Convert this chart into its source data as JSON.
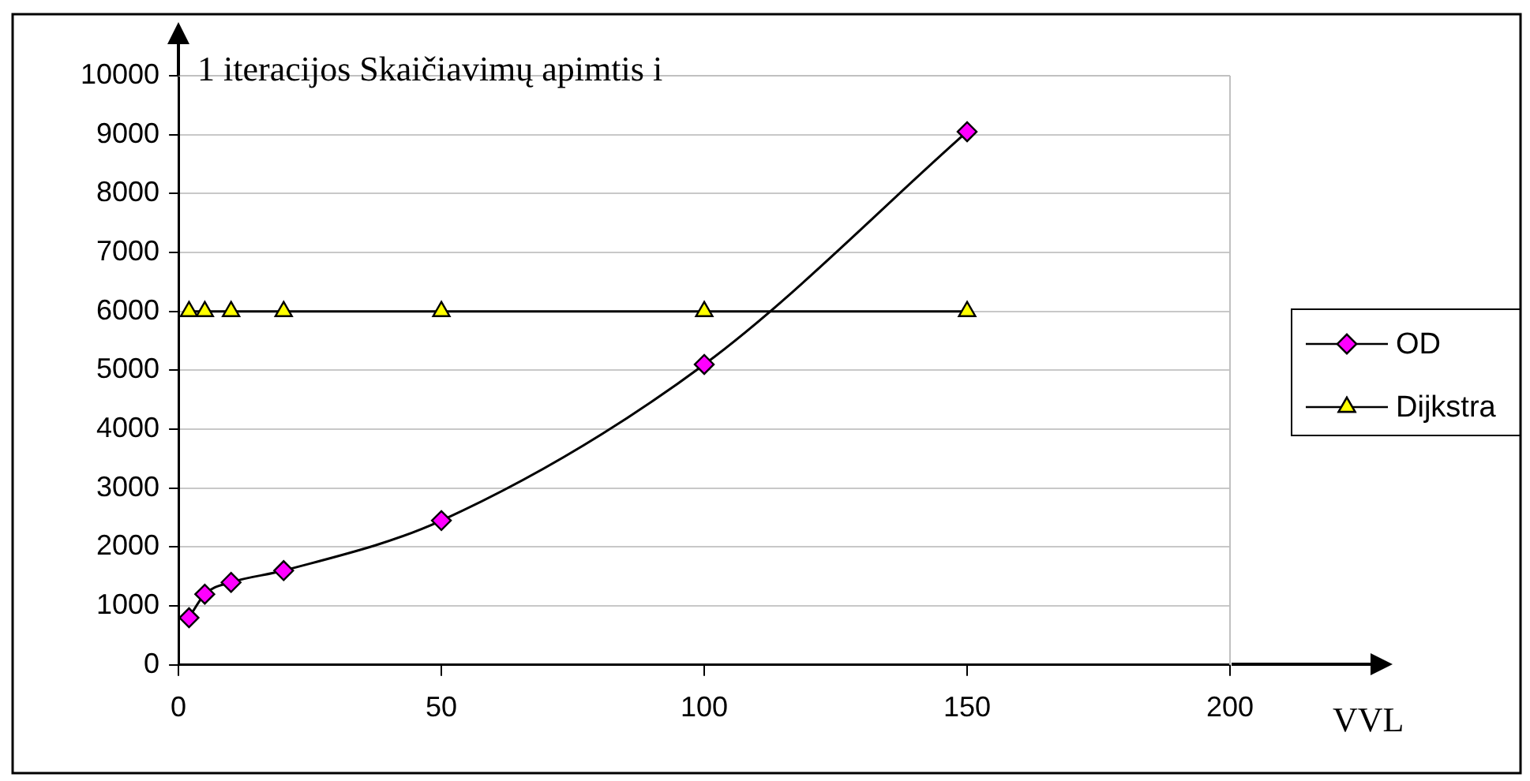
{
  "chart_data": {
    "type": "line",
    "ylabel": "1 iteracijos Skaičiavimų apimtis i",
    "xlabel": "VVL",
    "x": [
      2,
      5,
      10,
      20,
      50,
      100,
      150
    ],
    "series": [
      {
        "name": "OD",
        "color": "#ff00ff",
        "marker": "diamond",
        "values": [
          800,
          1200,
          1400,
          1600,
          2450,
          5100,
          9050
        ]
      },
      {
        "name": "Dijkstra",
        "color": "#ffff00",
        "marker": "triangle",
        "values": [
          6000,
          6000,
          6000,
          6000,
          6000,
          6000,
          6000
        ]
      }
    ],
    "xlim": [
      0,
      200
    ],
    "xticks": [
      0,
      50,
      100,
      150,
      200
    ],
    "ylim": [
      0,
      10000
    ],
    "yticks": [
      0,
      1000,
      2000,
      3000,
      4000,
      5000,
      6000,
      7000,
      8000,
      9000,
      10000
    ],
    "grid": "y",
    "legend": "right",
    "line_style": "solid"
  }
}
